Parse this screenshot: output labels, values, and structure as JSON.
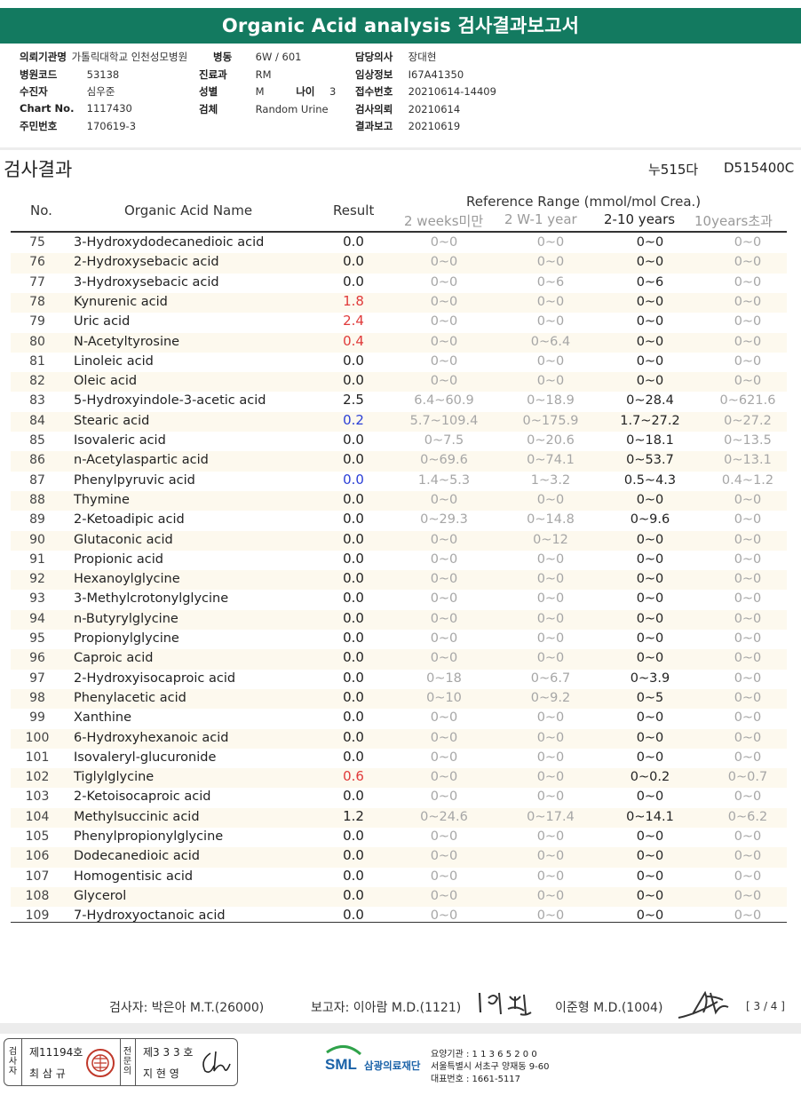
{
  "report": {
    "title": "Organic Acid analysis 검사결과보고서",
    "section_title": "검사결과",
    "code_left": "누515다",
    "code_right": "D515400C",
    "page": "[ 3 / 4 ]"
  },
  "info": {
    "hospital_label": "의뢰기관명",
    "hospital_value": "가톨릭대학교 인천성모병원",
    "ward_label": "병동",
    "ward_value": "6W / 601",
    "doctor_label": "담당의사",
    "doctor_value": "장대현",
    "hosp_code_label": "병원코드",
    "hosp_code_value": "53138",
    "dept_label": "진료과",
    "dept_value": "RM",
    "clinical_label": "임상정보",
    "clinical_value": "I67A41350",
    "patient_label": "수진자",
    "patient_value": "심우준",
    "sex_label": "성별",
    "sex_value": "M",
    "age_label": "나이",
    "age_value": "3",
    "receipt_label": "접수번호",
    "receipt_value": "20210614-14409",
    "chart_label": "Chart No.",
    "chart_value": "1117430",
    "specimen_label": "검체",
    "specimen_value": "Random Urine",
    "request_label": "검사의뢰",
    "request_value": "20210614",
    "id_label": "주민번호",
    "id_value": "170619-3",
    "result_label": "결과보고",
    "result_value": "20210619"
  },
  "table": {
    "headers": {
      "no": "No.",
      "name": "Organic Acid Name",
      "result": "Result",
      "ref": "Reference Range (mmol/mol Crea.)",
      "age1": "2 weeks미만",
      "age2": "2 W-1 year",
      "age3": "2-10 years",
      "age4": "10years초과"
    },
    "colors": {
      "high": "#e03a3a",
      "low": "#2b3fd6",
      "normal": "#222222"
    },
    "rows": [
      {
        "no": "75",
        "name": "3-Hydroxydodecanedioic acid",
        "result": "0.0",
        "flag": "normal",
        "r1": "0~0",
        "r2": "0~0",
        "r3": "0~0",
        "r4": "0~0"
      },
      {
        "no": "76",
        "name": "2-Hydroxysebacic acid",
        "result": "0.0",
        "flag": "normal",
        "r1": "0~0",
        "r2": "0~0",
        "r3": "0~0",
        "r4": "0~0"
      },
      {
        "no": "77",
        "name": "3-Hydroxysebacic acid",
        "result": "0.0",
        "flag": "normal",
        "r1": "0~0",
        "r2": "0~6",
        "r3": "0~6",
        "r4": "0~0"
      },
      {
        "no": "78",
        "name": "Kynurenic acid",
        "result": "1.8",
        "flag": "high",
        "r1": "0~0",
        "r2": "0~0",
        "r3": "0~0",
        "r4": "0~0"
      },
      {
        "no": "79",
        "name": "Uric acid",
        "result": "2.4",
        "flag": "high",
        "r1": "0~0",
        "r2": "0~0",
        "r3": "0~0",
        "r4": "0~0"
      },
      {
        "no": "80",
        "name": "N-Acetyltyrosine",
        "result": "0.4",
        "flag": "high",
        "r1": "0~0",
        "r2": "0~6.4",
        "r3": "0~0",
        "r4": "0~0"
      },
      {
        "no": "81",
        "name": "Linoleic acid",
        "result": "0.0",
        "flag": "normal",
        "r1": "0~0",
        "r2": "0~0",
        "r3": "0~0",
        "r4": "0~0"
      },
      {
        "no": "82",
        "name": "Oleic acid",
        "result": "0.0",
        "flag": "normal",
        "r1": "0~0",
        "r2": "0~0",
        "r3": "0~0",
        "r4": "0~0"
      },
      {
        "no": "83",
        "name": "5-Hydroxyindole-3-acetic acid",
        "result": "2.5",
        "flag": "normal",
        "r1": "6.4~60.9",
        "r2": "0~18.9",
        "r3": "0~28.4",
        "r4": "0~621.6"
      },
      {
        "no": "84",
        "name": "Stearic acid",
        "result": "0.2",
        "flag": "low",
        "r1": "5.7~109.4",
        "r2": "0~175.9",
        "r3": "1.7~27.2",
        "r4": "0~27.2"
      },
      {
        "no": "85",
        "name": "Isovaleric acid",
        "result": "0.0",
        "flag": "normal",
        "r1": "0~7.5",
        "r2": "0~20.6",
        "r3": "0~18.1",
        "r4": "0~13.5"
      },
      {
        "no": "86",
        "name": "n-Acetylaspartic acid",
        "result": "0.0",
        "flag": "normal",
        "r1": "0~69.6",
        "r2": "0~74.1",
        "r3": "0~53.7",
        "r4": "0~13.1"
      },
      {
        "no": "87",
        "name": "Phenylpyruvic acid",
        "result": "0.0",
        "flag": "low",
        "r1": "1.4~5.3",
        "r2": "1~3.2",
        "r3": "0.5~4.3",
        "r4": "0.4~1.2"
      },
      {
        "no": "88",
        "name": "Thymine",
        "result": "0.0",
        "flag": "normal",
        "r1": "0~0",
        "r2": "0~0",
        "r3": "0~0",
        "r4": "0~0"
      },
      {
        "no": "89",
        "name": "2-Ketoadipic acid",
        "result": "0.0",
        "flag": "normal",
        "r1": "0~29.3",
        "r2": "0~14.8",
        "r3": "0~9.6",
        "r4": "0~0"
      },
      {
        "no": "90",
        "name": "Glutaconic acid",
        "result": "0.0",
        "flag": "normal",
        "r1": "0~0",
        "r2": "0~12",
        "r3": "0~0",
        "r4": "0~0"
      },
      {
        "no": "91",
        "name": "Propionic acid",
        "result": "0.0",
        "flag": "normal",
        "r1": "0~0",
        "r2": "0~0",
        "r3": "0~0",
        "r4": "0~0"
      },
      {
        "no": "92",
        "name": "Hexanoylglycine",
        "result": "0.0",
        "flag": "normal",
        "r1": "0~0",
        "r2": "0~0",
        "r3": "0~0",
        "r4": "0~0"
      },
      {
        "no": "93",
        "name": "3-Methylcrotonylglycine",
        "result": "0.0",
        "flag": "normal",
        "r1": "0~0",
        "r2": "0~0",
        "r3": "0~0",
        "r4": "0~0"
      },
      {
        "no": "94",
        "name": "n-Butyrylglycine",
        "result": "0.0",
        "flag": "normal",
        "r1": "0~0",
        "r2": "0~0",
        "r3": "0~0",
        "r4": "0~0"
      },
      {
        "no": "95",
        "name": "Propionylglycine",
        "result": "0.0",
        "flag": "normal",
        "r1": "0~0",
        "r2": "0~0",
        "r3": "0~0",
        "r4": "0~0"
      },
      {
        "no": "96",
        "name": "Caproic acid",
        "result": "0.0",
        "flag": "normal",
        "r1": "0~0",
        "r2": "0~0",
        "r3": "0~0",
        "r4": "0~0"
      },
      {
        "no": "97",
        "name": "2-Hydroxyisocaproic acid",
        "result": "0.0",
        "flag": "normal",
        "r1": "0~18",
        "r2": "0~6.7",
        "r3": "0~3.9",
        "r4": "0~0"
      },
      {
        "no": "98",
        "name": "Phenylacetic acid",
        "result": "0.0",
        "flag": "normal",
        "r1": "0~10",
        "r2": "0~9.2",
        "r3": "0~5",
        "r4": "0~0"
      },
      {
        "no": "99",
        "name": "Xanthine",
        "result": "0.0",
        "flag": "normal",
        "r1": "0~0",
        "r2": "0~0",
        "r3": "0~0",
        "r4": "0~0"
      },
      {
        "no": "100",
        "name": "6-Hydroxyhexanoic acid",
        "result": "0.0",
        "flag": "normal",
        "r1": "0~0",
        "r2": "0~0",
        "r3": "0~0",
        "r4": "0~0"
      },
      {
        "no": "101",
        "name": "Isovaleryl-glucuronide",
        "result": "0.0",
        "flag": "normal",
        "r1": "0~0",
        "r2": "0~0",
        "r3": "0~0",
        "r4": "0~0"
      },
      {
        "no": "102",
        "name": "Tiglylglycine",
        "result": "0.6",
        "flag": "high",
        "r1": "0~0",
        "r2": "0~0",
        "r3": "0~0.2",
        "r4": "0~0.7"
      },
      {
        "no": "103",
        "name": "2-Ketoisocaproic acid",
        "result": "0.0",
        "flag": "normal",
        "r1": "0~0",
        "r2": "0~0",
        "r3": "0~0",
        "r4": "0~0"
      },
      {
        "no": "104",
        "name": "Methylsuccinic acid",
        "result": "1.2",
        "flag": "normal",
        "r1": "0~24.6",
        "r2": "0~17.4",
        "r3": "0~14.1",
        "r4": "0~6.2"
      },
      {
        "no": "105",
        "name": "Phenylpropionylglycine",
        "result": "0.0",
        "flag": "normal",
        "r1": "0~0",
        "r2": "0~0",
        "r3": "0~0",
        "r4": "0~0"
      },
      {
        "no": "106",
        "name": "Dodecanedioic acid",
        "result": "0.0",
        "flag": "normal",
        "r1": "0~0",
        "r2": "0~0",
        "r3": "0~0",
        "r4": "0~0"
      },
      {
        "no": "107",
        "name": "Homogentisic acid",
        "result": "0.0",
        "flag": "normal",
        "r1": "0~0",
        "r2": "0~0",
        "r3": "0~0",
        "r4": "0~0"
      },
      {
        "no": "108",
        "name": "Glycerol",
        "result": "0.0",
        "flag": "normal",
        "r1": "0~0",
        "r2": "0~0",
        "r3": "0~0",
        "r4": "0~0"
      },
      {
        "no": "109",
        "name": "7-Hydroxyoctanoic acid",
        "result": "0.0",
        "flag": "normal",
        "r1": "0~0",
        "r2": "0~0",
        "r3": "0~0",
        "r4": "0~0"
      }
    ]
  },
  "signers": {
    "examiner": "검사자: 박은아 M.T.(26000)",
    "reporter": "보고자: 이아람 M.D.(1121)",
    "second": "이준형 M.D.(1004)"
  },
  "footer": {
    "label1": "검사자",
    "cert1": "제11194호",
    "name1": "최 삼 규",
    "label2": "전문의",
    "cert2": "제3 3 3 호",
    "name2": "지 현 영",
    "org_name": "삼광의료재단",
    "inst_code": "요양기관 : 1 1 3 6 5 2 0 0",
    "address": "서울특별시 서초구 양재동 9-60",
    "phone": "대표번호 : 1661-5117",
    "logo_text": "SML",
    "brand_color": "#1a62a8",
    "title_bar_color": "#137a60"
  }
}
